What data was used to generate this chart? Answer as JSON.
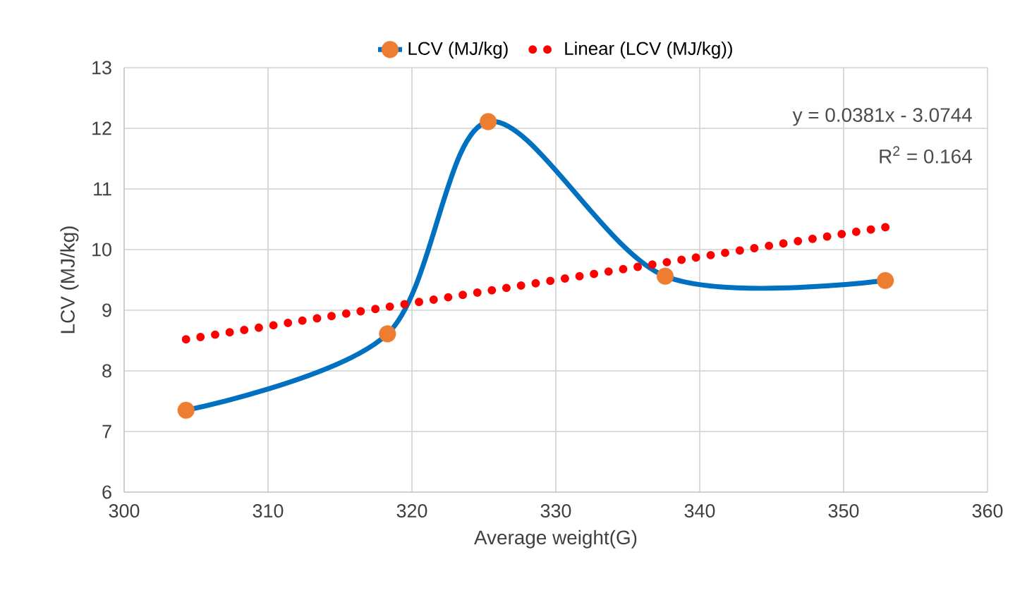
{
  "chart_data": {
    "type": "line",
    "xlabel": "Average weight(G)",
    "ylabel": "LCV   (MJ/kg)",
    "xlim": [
      300,
      360
    ],
    "xticks": [
      300,
      310,
      320,
      330,
      340,
      350,
      360
    ],
    "ylim": [
      6,
      13
    ],
    "yticks": [
      6,
      7,
      8,
      9,
      10,
      11,
      12,
      13
    ],
    "grid": true,
    "legend": "top",
    "annotations": [
      "y = 0.0381x - 3.0744",
      "R$^{2}$ = 0.164"
    ],
    "series": [
      {
        "name": "LCV   (MJ/kg)",
        "color": "#0070c0",
        "marker": "circle",
        "line_style": "solid",
        "colors": [
          "#ed7d31",
          "#ed7d31",
          "#ed7d31",
          "#ed7d31",
          "#ed7d31"
        ],
        "x": [
          304.3,
          318.3,
          325.3,
          337.6,
          352.9
        ],
        "values": [
          7.35,
          8.61,
          12.11,
          9.56,
          9.49
        ]
      },
      {
        "name": "Linear (LCV   (MJ/kg))",
        "color": "#ff0000",
        "marker": "none",
        "line_style": "dotted",
        "x": [
          304.3,
          352.9
        ],
        "values": [
          8.52,
          10.37
        ]
      }
    ]
  }
}
